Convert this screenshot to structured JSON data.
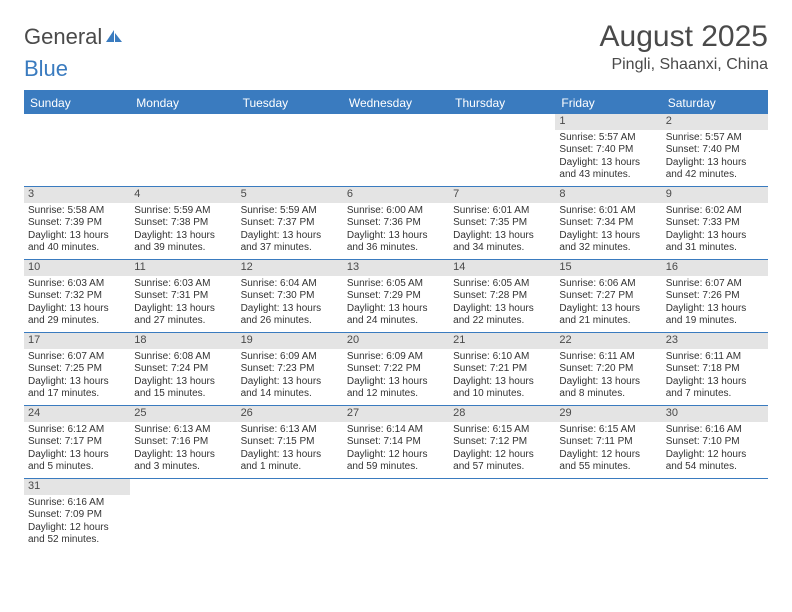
{
  "logo": {
    "part1": "General",
    "part2": "Blue"
  },
  "title": "August 2025",
  "location": "Pingli, Shaanxi, China",
  "colors": {
    "accent": "#3a7bbf",
    "dayHeaderBg": "#e4e4e4",
    "text": "#4a4a4a"
  },
  "daysOfWeek": [
    "Sunday",
    "Monday",
    "Tuesday",
    "Wednesday",
    "Thursday",
    "Friday",
    "Saturday"
  ],
  "weeks": [
    [
      null,
      null,
      null,
      null,
      null,
      {
        "n": "1",
        "sr": "Sunrise: 5:57 AM",
        "ss": "Sunset: 7:40 PM",
        "d1": "Daylight: 13 hours",
        "d2": "and 43 minutes."
      },
      {
        "n": "2",
        "sr": "Sunrise: 5:57 AM",
        "ss": "Sunset: 7:40 PM",
        "d1": "Daylight: 13 hours",
        "d2": "and 42 minutes."
      }
    ],
    [
      {
        "n": "3",
        "sr": "Sunrise: 5:58 AM",
        "ss": "Sunset: 7:39 PM",
        "d1": "Daylight: 13 hours",
        "d2": "and 40 minutes."
      },
      {
        "n": "4",
        "sr": "Sunrise: 5:59 AM",
        "ss": "Sunset: 7:38 PM",
        "d1": "Daylight: 13 hours",
        "d2": "and 39 minutes."
      },
      {
        "n": "5",
        "sr": "Sunrise: 5:59 AM",
        "ss": "Sunset: 7:37 PM",
        "d1": "Daylight: 13 hours",
        "d2": "and 37 minutes."
      },
      {
        "n": "6",
        "sr": "Sunrise: 6:00 AM",
        "ss": "Sunset: 7:36 PM",
        "d1": "Daylight: 13 hours",
        "d2": "and 36 minutes."
      },
      {
        "n": "7",
        "sr": "Sunrise: 6:01 AM",
        "ss": "Sunset: 7:35 PM",
        "d1": "Daylight: 13 hours",
        "d2": "and 34 minutes."
      },
      {
        "n": "8",
        "sr": "Sunrise: 6:01 AM",
        "ss": "Sunset: 7:34 PM",
        "d1": "Daylight: 13 hours",
        "d2": "and 32 minutes."
      },
      {
        "n": "9",
        "sr": "Sunrise: 6:02 AM",
        "ss": "Sunset: 7:33 PM",
        "d1": "Daylight: 13 hours",
        "d2": "and 31 minutes."
      }
    ],
    [
      {
        "n": "10",
        "sr": "Sunrise: 6:03 AM",
        "ss": "Sunset: 7:32 PM",
        "d1": "Daylight: 13 hours",
        "d2": "and 29 minutes."
      },
      {
        "n": "11",
        "sr": "Sunrise: 6:03 AM",
        "ss": "Sunset: 7:31 PM",
        "d1": "Daylight: 13 hours",
        "d2": "and 27 minutes."
      },
      {
        "n": "12",
        "sr": "Sunrise: 6:04 AM",
        "ss": "Sunset: 7:30 PM",
        "d1": "Daylight: 13 hours",
        "d2": "and 26 minutes."
      },
      {
        "n": "13",
        "sr": "Sunrise: 6:05 AM",
        "ss": "Sunset: 7:29 PM",
        "d1": "Daylight: 13 hours",
        "d2": "and 24 minutes."
      },
      {
        "n": "14",
        "sr": "Sunrise: 6:05 AM",
        "ss": "Sunset: 7:28 PM",
        "d1": "Daylight: 13 hours",
        "d2": "and 22 minutes."
      },
      {
        "n": "15",
        "sr": "Sunrise: 6:06 AM",
        "ss": "Sunset: 7:27 PM",
        "d1": "Daylight: 13 hours",
        "d2": "and 21 minutes."
      },
      {
        "n": "16",
        "sr": "Sunrise: 6:07 AM",
        "ss": "Sunset: 7:26 PM",
        "d1": "Daylight: 13 hours",
        "d2": "and 19 minutes."
      }
    ],
    [
      {
        "n": "17",
        "sr": "Sunrise: 6:07 AM",
        "ss": "Sunset: 7:25 PM",
        "d1": "Daylight: 13 hours",
        "d2": "and 17 minutes."
      },
      {
        "n": "18",
        "sr": "Sunrise: 6:08 AM",
        "ss": "Sunset: 7:24 PM",
        "d1": "Daylight: 13 hours",
        "d2": "and 15 minutes."
      },
      {
        "n": "19",
        "sr": "Sunrise: 6:09 AM",
        "ss": "Sunset: 7:23 PM",
        "d1": "Daylight: 13 hours",
        "d2": "and 14 minutes."
      },
      {
        "n": "20",
        "sr": "Sunrise: 6:09 AM",
        "ss": "Sunset: 7:22 PM",
        "d1": "Daylight: 13 hours",
        "d2": "and 12 minutes."
      },
      {
        "n": "21",
        "sr": "Sunrise: 6:10 AM",
        "ss": "Sunset: 7:21 PM",
        "d1": "Daylight: 13 hours",
        "d2": "and 10 minutes."
      },
      {
        "n": "22",
        "sr": "Sunrise: 6:11 AM",
        "ss": "Sunset: 7:20 PM",
        "d1": "Daylight: 13 hours",
        "d2": "and 8 minutes."
      },
      {
        "n": "23",
        "sr": "Sunrise: 6:11 AM",
        "ss": "Sunset: 7:18 PM",
        "d1": "Daylight: 13 hours",
        "d2": "and 7 minutes."
      }
    ],
    [
      {
        "n": "24",
        "sr": "Sunrise: 6:12 AM",
        "ss": "Sunset: 7:17 PM",
        "d1": "Daylight: 13 hours",
        "d2": "and 5 minutes."
      },
      {
        "n": "25",
        "sr": "Sunrise: 6:13 AM",
        "ss": "Sunset: 7:16 PM",
        "d1": "Daylight: 13 hours",
        "d2": "and 3 minutes."
      },
      {
        "n": "26",
        "sr": "Sunrise: 6:13 AM",
        "ss": "Sunset: 7:15 PM",
        "d1": "Daylight: 13 hours",
        "d2": "and 1 minute."
      },
      {
        "n": "27",
        "sr": "Sunrise: 6:14 AM",
        "ss": "Sunset: 7:14 PM",
        "d1": "Daylight: 12 hours",
        "d2": "and 59 minutes."
      },
      {
        "n": "28",
        "sr": "Sunrise: 6:15 AM",
        "ss": "Sunset: 7:12 PM",
        "d1": "Daylight: 12 hours",
        "d2": "and 57 minutes."
      },
      {
        "n": "29",
        "sr": "Sunrise: 6:15 AM",
        "ss": "Sunset: 7:11 PM",
        "d1": "Daylight: 12 hours",
        "d2": "and 55 minutes."
      },
      {
        "n": "30",
        "sr": "Sunrise: 6:16 AM",
        "ss": "Sunset: 7:10 PM",
        "d1": "Daylight: 12 hours",
        "d2": "and 54 minutes."
      }
    ],
    [
      {
        "n": "31",
        "sr": "Sunrise: 6:16 AM",
        "ss": "Sunset: 7:09 PM",
        "d1": "Daylight: 12 hours",
        "d2": "and 52 minutes."
      },
      null,
      null,
      null,
      null,
      null,
      null
    ]
  ]
}
